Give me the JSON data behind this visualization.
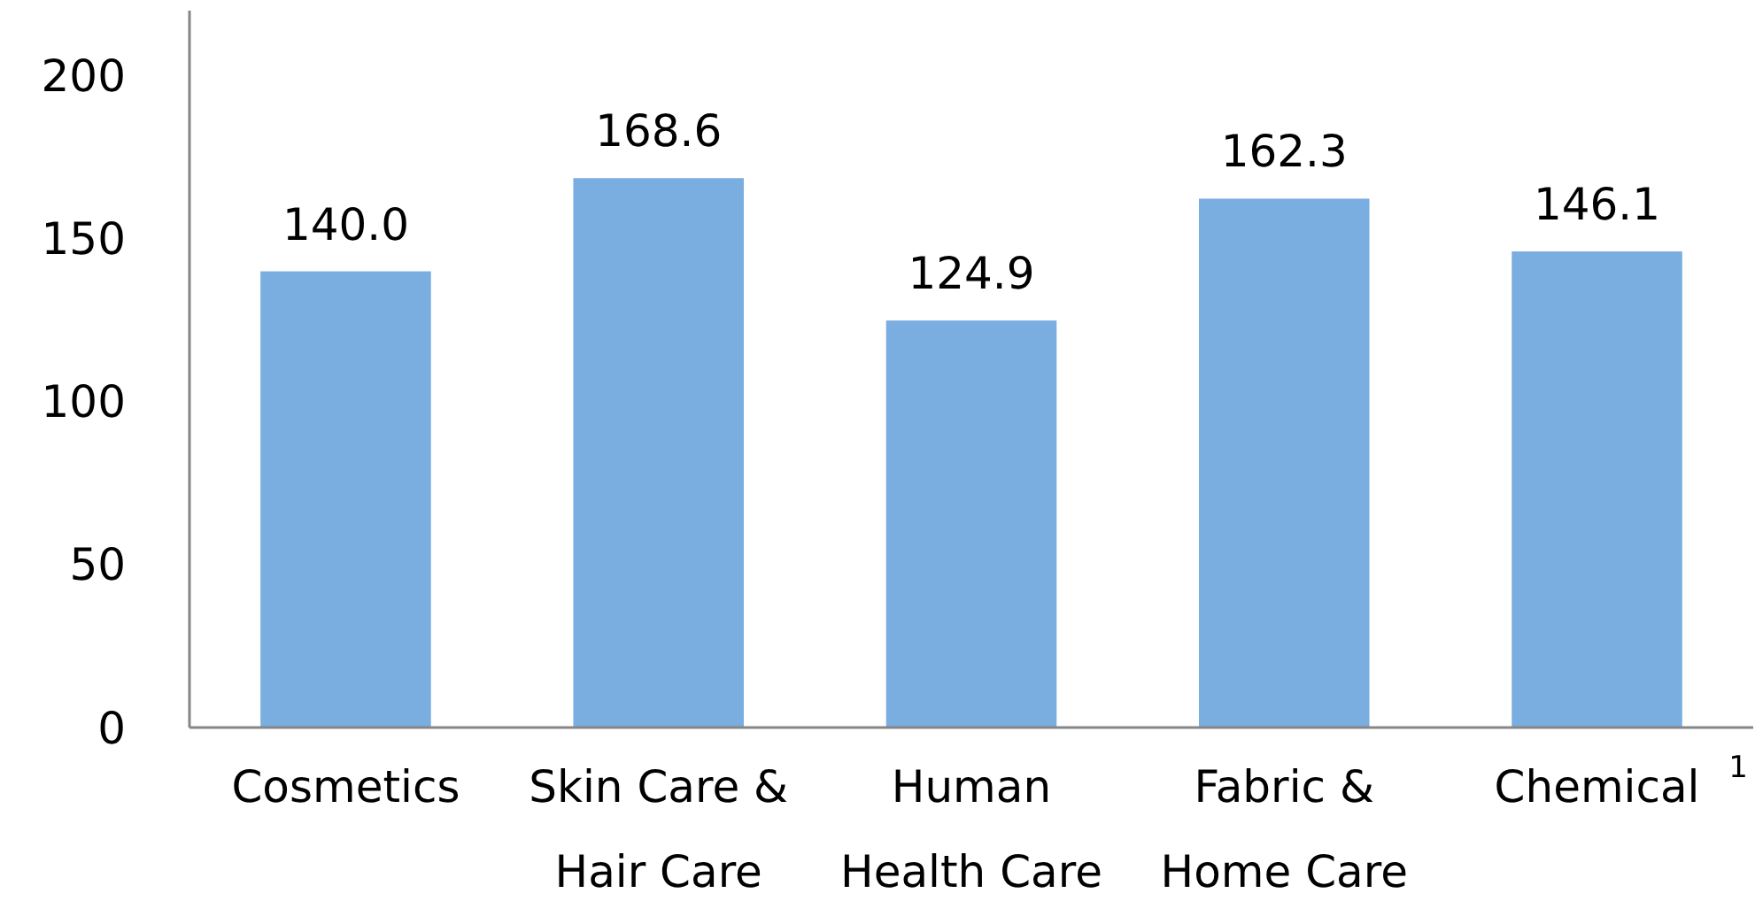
{
  "chart_data": {
    "type": "bar",
    "categories": [
      "Cosmetics",
      "Skin Care &\nHair Care",
      "Human\nHealth Care",
      "Fabric &\nHome Care",
      "Chemical"
    ],
    "values": [
      140.0,
      168.6,
      124.9,
      162.3,
      146.1
    ],
    "value_labels": [
      "140.0",
      "168.6",
      "124.9",
      "162.3",
      "146.1"
    ],
    "color": "#7aade0",
    "ylim": [
      0,
      220
    ],
    "yticks": [
      0,
      50,
      100,
      150,
      200
    ],
    "grid": false,
    "annotations": [
      "1"
    ]
  }
}
